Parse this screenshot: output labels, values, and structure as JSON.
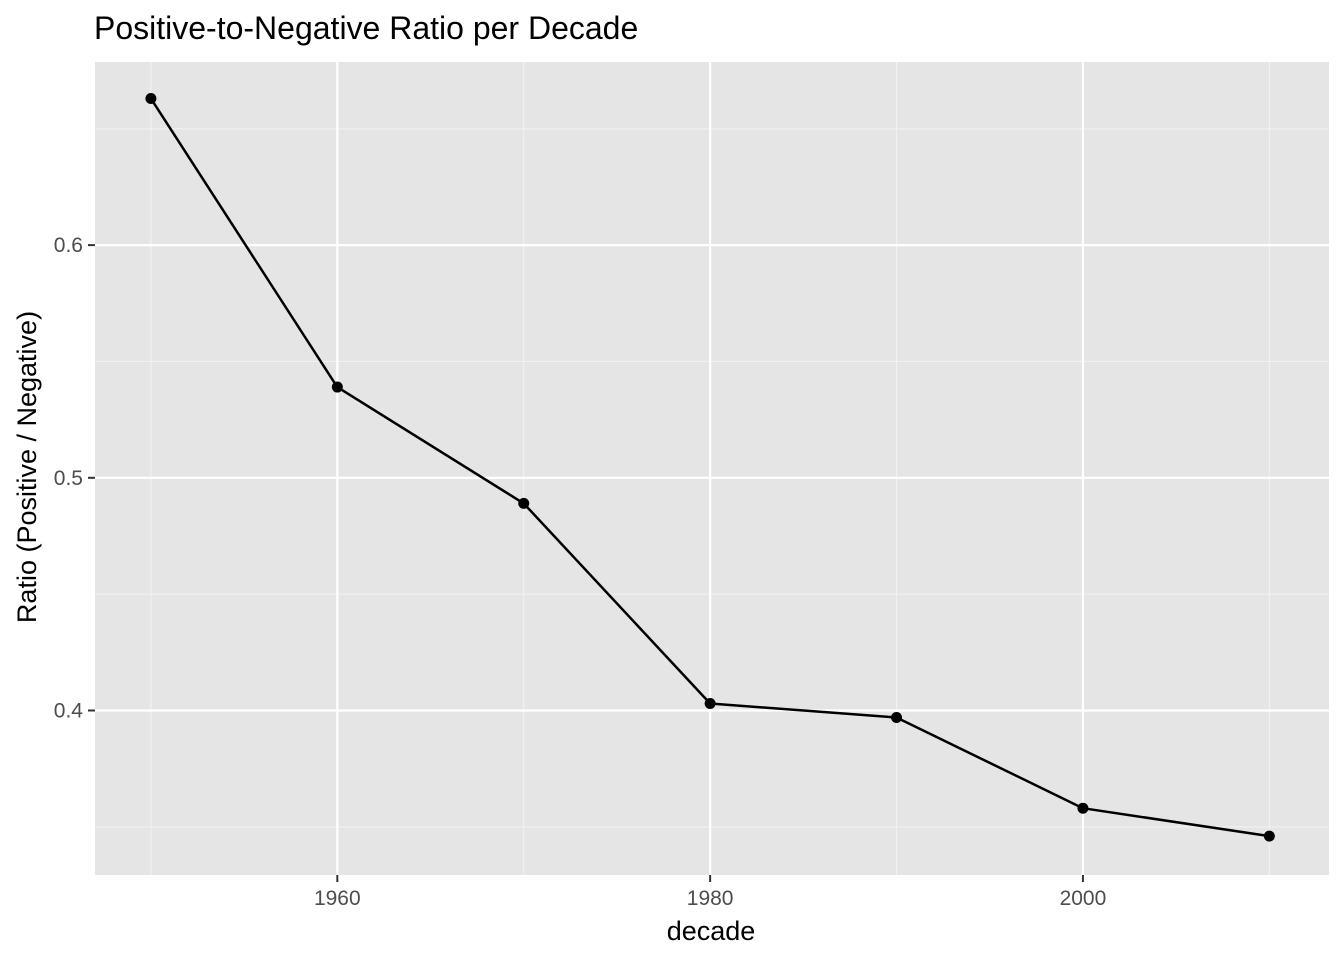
{
  "chart_data": {
    "type": "line",
    "title": "Positive-to-Negative Ratio per Decade",
    "xlabel": "decade",
    "ylabel": "Ratio (Positive / Negative)",
    "x": [
      1950,
      1960,
      1970,
      1980,
      1990,
      2000,
      2010
    ],
    "series": [
      {
        "name": "ratio",
        "values": [
          0.663,
          0.539,
          0.489,
          0.403,
          0.397,
          0.358,
          0.346
        ]
      }
    ],
    "xlim": [
      1947,
      2013.2
    ],
    "ylim": [
      0.3293,
      0.6787
    ],
    "x_ticks": [
      1960,
      1980,
      2000
    ],
    "x_tick_labels": [
      "1960",
      "1980",
      "2000"
    ],
    "y_ticks": [
      0.4,
      0.5,
      0.6
    ],
    "y_tick_labels": [
      "0.4",
      "0.5",
      "0.6"
    ],
    "x_minor_ticks": [
      1950,
      1970,
      1990,
      2010
    ],
    "y_minor_ticks": [
      0.35,
      0.45,
      0.55,
      0.65
    ],
    "grid": true,
    "legend": "none",
    "colors": {
      "panel_background": "#e5e5e5",
      "grid_major": "#ffffff",
      "grid_minor": "#f2f2f2",
      "line": "#000000",
      "point": "#000000",
      "tick_mark": "#333333"
    }
  }
}
